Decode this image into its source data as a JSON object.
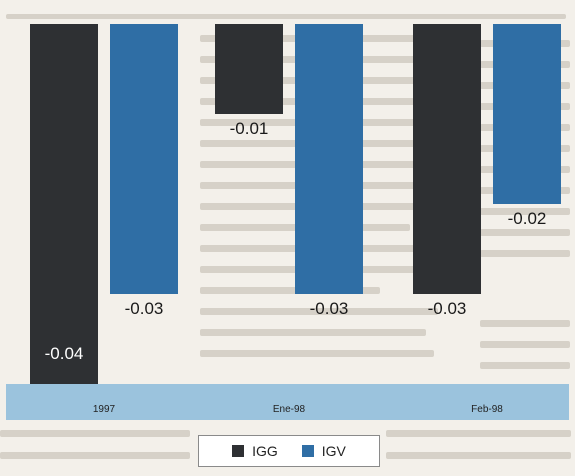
{
  "chart_data": {
    "type": "bar",
    "categories": [
      "1997",
      "Ene-98",
      "Feb-98"
    ],
    "series": [
      {
        "name": "IGG",
        "values": [
          -0.04,
          -0.01,
          -0.03
        ],
        "color": "#2e3033"
      },
      {
        "name": "IGV",
        "values": [
          -0.03,
          -0.03,
          -0.02
        ],
        "color": "#2f6ea5"
      }
    ],
    "data_labels": {
      "IGG": [
        "-0.04",
        "-0.01",
        "-0.03"
      ],
      "IGV": [
        "-0.03",
        "-0.03",
        "-0.02"
      ]
    },
    "legend_position": "bottom",
    "grid": false,
    "background_color": "#f3f0ea",
    "axis_band_color": "#9bc3dd"
  },
  "legend": {
    "igg_label": "IGG",
    "igv_label": "IGV"
  }
}
